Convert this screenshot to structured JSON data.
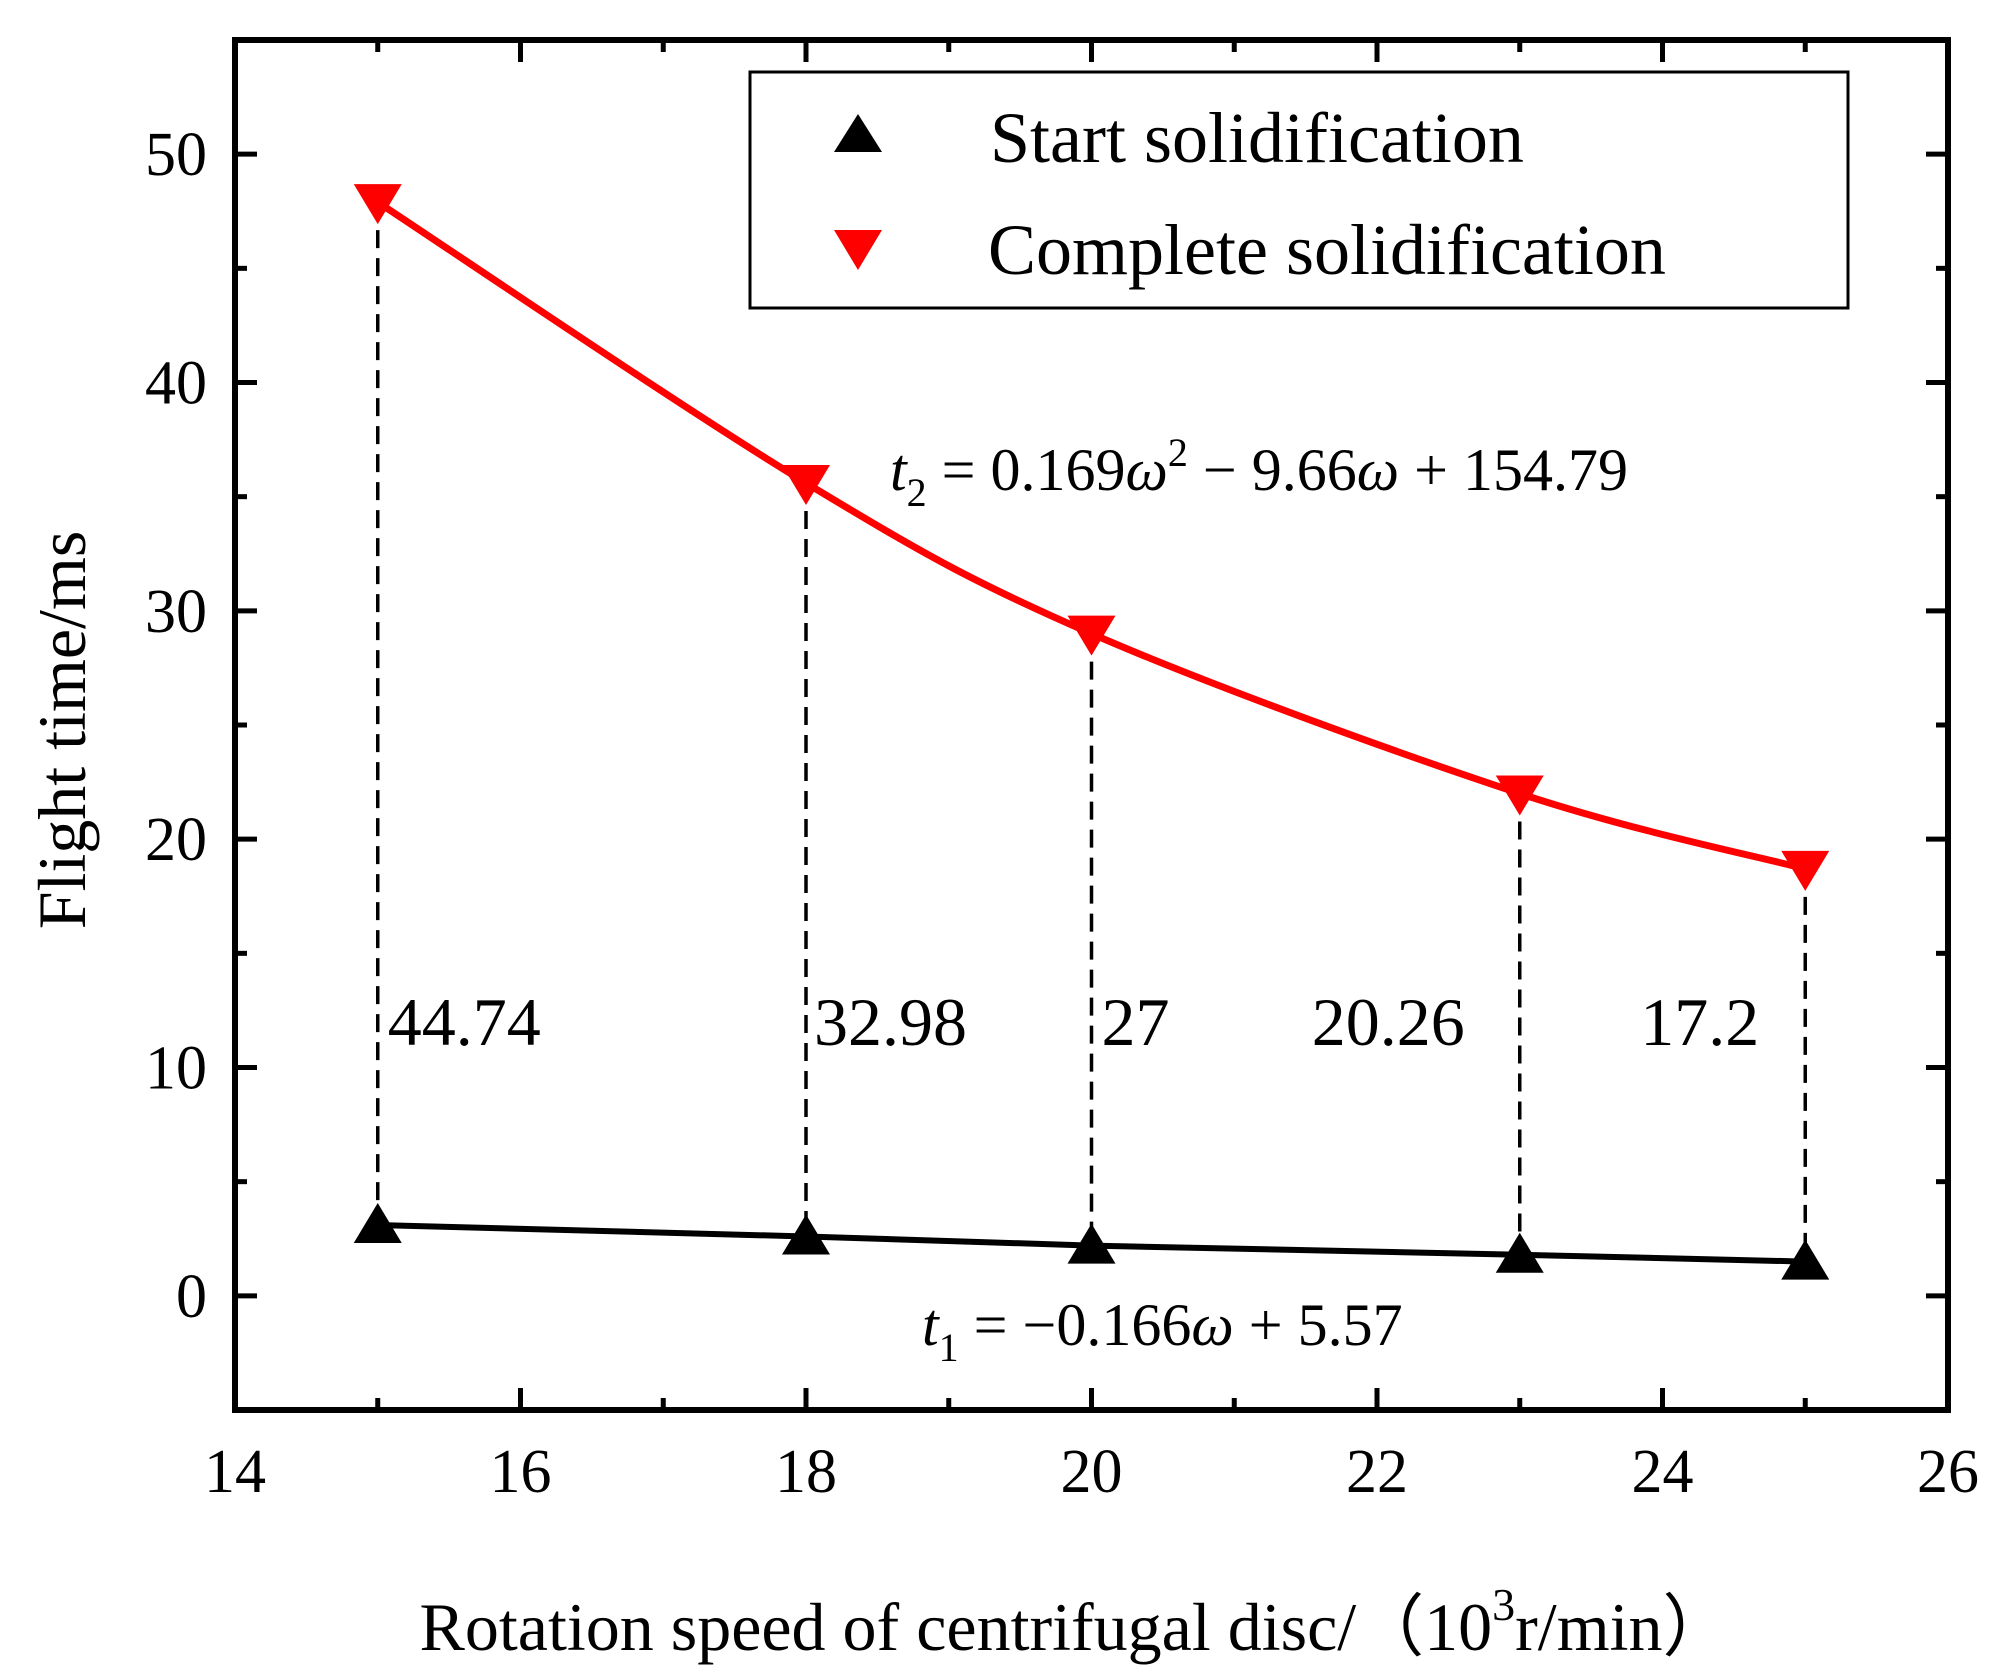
{
  "chart_data": {
    "type": "line",
    "x": [
      15,
      18,
      20,
      23,
      25
    ],
    "series": [
      {
        "name": "Start solidification",
        "values": [
          3.1,
          2.6,
          2.2,
          1.8,
          1.5
        ],
        "color": "#000000",
        "marker": "triangle-up",
        "fit_equation": "t1 = -0.166ω + 5.57"
      },
      {
        "name": "Complete solidification",
        "values": [
          47.9,
          35.6,
          29.0,
          22.0,
          18.7
        ],
        "color": "#ff0000",
        "marker": "triangle-down",
        "fit_equation": "t2 = 0.169ω² - 9.66ω + 154.79"
      }
    ],
    "difference_labels": [
      "44.74",
      "32.98",
      "27",
      "20.26",
      "17.2"
    ],
    "xlabel_main": "Rotation speed of centrifugal disc/（10",
    "xlabel_sup": "3",
    "xlabel_tail": "r/min）",
    "ylabel": "Flight time/ms",
    "xlim": [
      14,
      26
    ],
    "ylim": [
      -5,
      55
    ],
    "xticks": [
      "14",
      "16",
      "18",
      "20",
      "22",
      "24",
      "26"
    ],
    "yticks": [
      "0",
      "10",
      "20",
      "30",
      "40",
      "50"
    ],
    "legend_position": "top-right",
    "equations": {
      "t2": {
        "var": "t",
        "sub": "2",
        "rhs1": " = 0.169",
        "omega": "ω",
        "sup": "2",
        "rhs2": " − 9.66",
        "rhs3": " + 154.79"
      },
      "t1": {
        "var": "t",
        "sub": "1",
        "rhs1": " = −0.166",
        "omega": "ω",
        "rhs2": " + 5.57"
      }
    }
  }
}
